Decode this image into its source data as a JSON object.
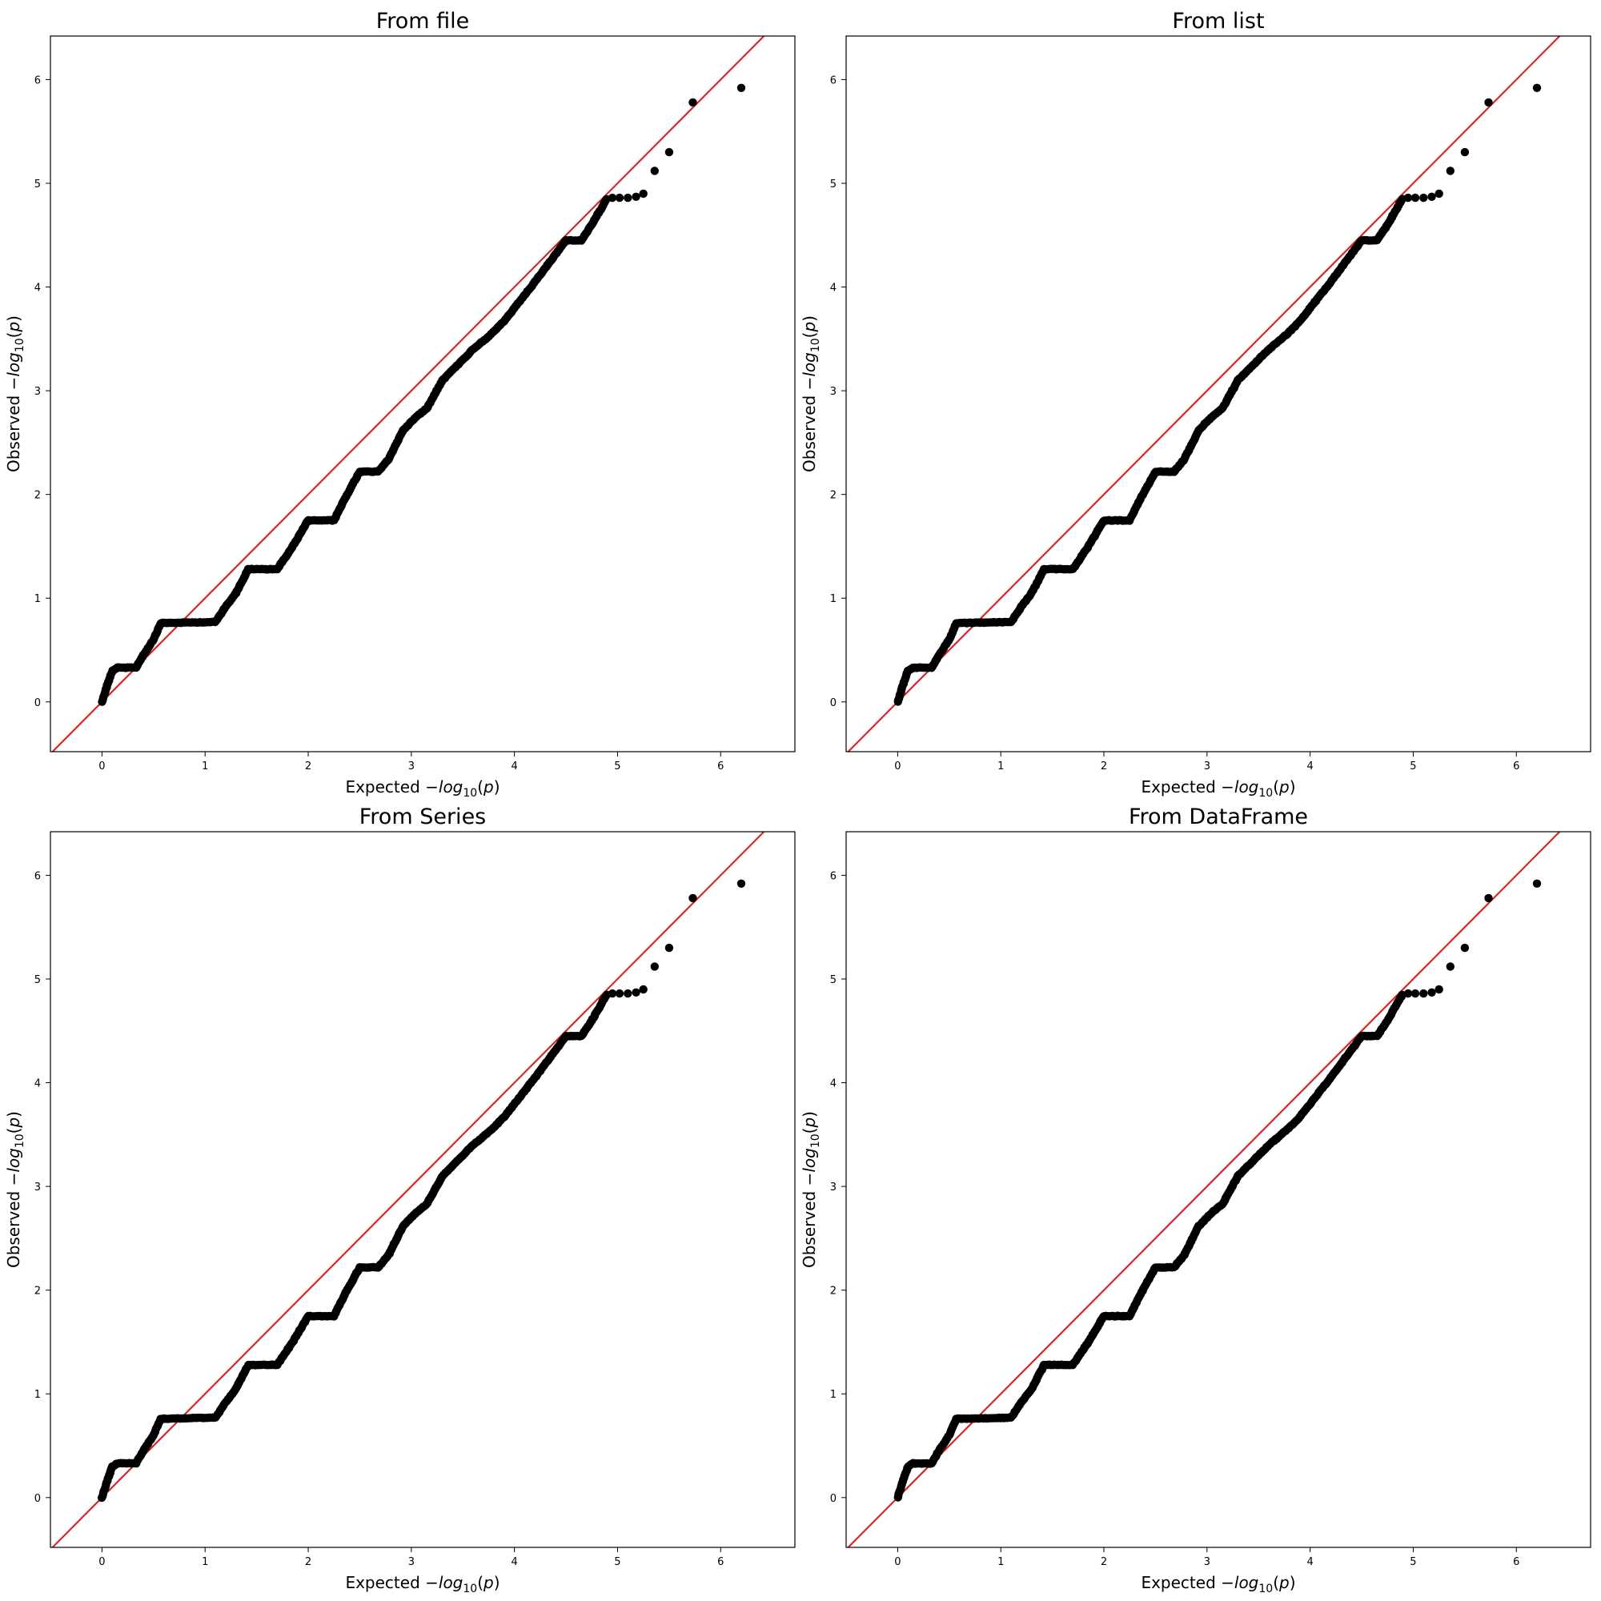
{
  "chart_data": [
    {
      "type": "scatter",
      "title": "From file",
      "xlabel": "Expected -log10(p)",
      "ylabel": "Observed -log10(p)",
      "xlim": [
        -0.5,
        6.72
      ],
      "ylim": [
        -0.48,
        6.42
      ],
      "xticks": [
        "0",
        "1",
        "2",
        "3",
        "4",
        "5",
        "6"
      ],
      "yticks": [
        "0",
        "1",
        "2",
        "3",
        "4",
        "5",
        "6"
      ],
      "reference_line": "y = x",
      "reference_color": "#ee1111",
      "point_color": "#000000",
      "curve": [
        [
          0,
          0
        ],
        [
          0.05,
          0.16
        ],
        [
          0.1,
          0.3
        ],
        [
          0.15,
          0.33
        ],
        [
          0.33,
          0.33
        ],
        [
          0.4,
          0.45
        ],
        [
          0.5,
          0.6
        ],
        [
          0.57,
          0.76
        ],
        [
          1.1,
          0.77
        ],
        [
          1.2,
          0.92
        ],
        [
          1.3,
          1.05
        ],
        [
          1.42,
          1.28
        ],
        [
          1.7,
          1.28
        ],
        [
          1.85,
          1.5
        ],
        [
          2.0,
          1.75
        ],
        [
          2.25,
          1.75
        ],
        [
          2.35,
          1.95
        ],
        [
          2.5,
          2.22
        ],
        [
          2.68,
          2.22
        ],
        [
          2.78,
          2.34
        ],
        [
          2.92,
          2.62
        ],
        [
          3.05,
          2.75
        ],
        [
          3.15,
          2.83
        ],
        [
          3.3,
          3.1
        ],
        [
          3.6,
          3.4
        ],
        [
          3.78,
          3.55
        ],
        [
          3.9,
          3.67
        ],
        [
          4.2,
          4.05
        ],
        [
          4.35,
          4.25
        ],
        [
          4.5,
          4.45
        ],
        [
          4.65,
          4.45
        ],
        [
          4.75,
          4.6
        ],
        [
          4.9,
          4.86
        ]
      ],
      "outliers": [
        [
          4.95,
          4.86
        ],
        [
          5.02,
          4.86
        ],
        [
          5.1,
          4.86
        ],
        [
          5.18,
          4.87
        ],
        [
          5.25,
          4.9
        ],
        [
          5.36,
          5.12
        ],
        [
          5.5,
          5.3
        ],
        [
          5.73,
          5.78
        ],
        [
          6.2,
          5.92
        ]
      ]
    },
    {
      "type": "scatter",
      "title": "From list",
      "xlabel": "Expected -log10(p)",
      "ylabel": "Observed -log10(p)",
      "xlim": [
        -0.5,
        6.72
      ],
      "ylim": [
        -0.48,
        6.42
      ],
      "xticks": [
        "0",
        "1",
        "2",
        "3",
        "4",
        "5",
        "6"
      ],
      "yticks": [
        "0",
        "1",
        "2",
        "3",
        "4",
        "5",
        "6"
      ],
      "reference_line": "y = x",
      "reference_color": "#ee1111",
      "point_color": "#000000",
      "curve": [
        [
          0,
          0
        ],
        [
          0.05,
          0.16
        ],
        [
          0.1,
          0.3
        ],
        [
          0.15,
          0.33
        ],
        [
          0.33,
          0.33
        ],
        [
          0.4,
          0.45
        ],
        [
          0.5,
          0.6
        ],
        [
          0.57,
          0.76
        ],
        [
          1.1,
          0.77
        ],
        [
          1.2,
          0.92
        ],
        [
          1.3,
          1.05
        ],
        [
          1.42,
          1.28
        ],
        [
          1.7,
          1.28
        ],
        [
          1.85,
          1.5
        ],
        [
          2.0,
          1.75
        ],
        [
          2.25,
          1.75
        ],
        [
          2.35,
          1.95
        ],
        [
          2.5,
          2.22
        ],
        [
          2.68,
          2.22
        ],
        [
          2.78,
          2.34
        ],
        [
          2.92,
          2.62
        ],
        [
          3.05,
          2.75
        ],
        [
          3.15,
          2.83
        ],
        [
          3.3,
          3.1
        ],
        [
          3.6,
          3.4
        ],
        [
          3.78,
          3.55
        ],
        [
          3.9,
          3.67
        ],
        [
          4.2,
          4.05
        ],
        [
          4.35,
          4.25
        ],
        [
          4.5,
          4.45
        ],
        [
          4.65,
          4.45
        ],
        [
          4.75,
          4.6
        ],
        [
          4.9,
          4.86
        ]
      ],
      "outliers": [
        [
          4.95,
          4.86
        ],
        [
          5.02,
          4.86
        ],
        [
          5.1,
          4.86
        ],
        [
          5.18,
          4.87
        ],
        [
          5.25,
          4.9
        ],
        [
          5.36,
          5.12
        ],
        [
          5.5,
          5.3
        ],
        [
          5.73,
          5.78
        ],
        [
          6.2,
          5.92
        ]
      ]
    },
    {
      "type": "scatter",
      "title": "From Series",
      "xlabel": "Expected -log10(p)",
      "ylabel": "Observed -log10(p)",
      "xlim": [
        -0.5,
        6.72
      ],
      "ylim": [
        -0.48,
        6.42
      ],
      "xticks": [
        "0",
        "1",
        "2",
        "3",
        "4",
        "5",
        "6"
      ],
      "yticks": [
        "0",
        "1",
        "2",
        "3",
        "4",
        "5",
        "6"
      ],
      "reference_line": "y = x",
      "reference_color": "#ee1111",
      "point_color": "#000000",
      "curve": [
        [
          0,
          0
        ],
        [
          0.05,
          0.16
        ],
        [
          0.1,
          0.3
        ],
        [
          0.15,
          0.33
        ],
        [
          0.33,
          0.33
        ],
        [
          0.4,
          0.45
        ],
        [
          0.5,
          0.6
        ],
        [
          0.57,
          0.76
        ],
        [
          1.1,
          0.77
        ],
        [
          1.2,
          0.92
        ],
        [
          1.3,
          1.05
        ],
        [
          1.42,
          1.28
        ],
        [
          1.7,
          1.28
        ],
        [
          1.85,
          1.5
        ],
        [
          2.0,
          1.75
        ],
        [
          2.25,
          1.75
        ],
        [
          2.35,
          1.95
        ],
        [
          2.5,
          2.22
        ],
        [
          2.68,
          2.22
        ],
        [
          2.78,
          2.34
        ],
        [
          2.92,
          2.62
        ],
        [
          3.05,
          2.75
        ],
        [
          3.15,
          2.83
        ],
        [
          3.3,
          3.1
        ],
        [
          3.6,
          3.4
        ],
        [
          3.78,
          3.55
        ],
        [
          3.9,
          3.67
        ],
        [
          4.2,
          4.05
        ],
        [
          4.35,
          4.25
        ],
        [
          4.5,
          4.45
        ],
        [
          4.65,
          4.45
        ],
        [
          4.75,
          4.6
        ],
        [
          4.9,
          4.86
        ]
      ],
      "outliers": [
        [
          4.95,
          4.86
        ],
        [
          5.02,
          4.86
        ],
        [
          5.1,
          4.86
        ],
        [
          5.18,
          4.87
        ],
        [
          5.25,
          4.9
        ],
        [
          5.36,
          5.12
        ],
        [
          5.5,
          5.3
        ],
        [
          5.73,
          5.78
        ],
        [
          6.2,
          5.92
        ]
      ]
    },
    {
      "type": "scatter",
      "title": "From DataFrame",
      "xlabel": "Expected -log10(p)",
      "ylabel": "Observed -log10(p)",
      "xlim": [
        -0.5,
        6.72
      ],
      "ylim": [
        -0.48,
        6.42
      ],
      "xticks": [
        "0",
        "1",
        "2",
        "3",
        "4",
        "5",
        "6"
      ],
      "yticks": [
        "0",
        "1",
        "2",
        "3",
        "4",
        "5",
        "6"
      ],
      "reference_line": "y = x",
      "reference_color": "#ee1111",
      "point_color": "#000000",
      "curve": [
        [
          0,
          0
        ],
        [
          0.05,
          0.16
        ],
        [
          0.1,
          0.3
        ],
        [
          0.15,
          0.33
        ],
        [
          0.33,
          0.33
        ],
        [
          0.4,
          0.45
        ],
        [
          0.5,
          0.6
        ],
        [
          0.57,
          0.76
        ],
        [
          1.1,
          0.77
        ],
        [
          1.2,
          0.92
        ],
        [
          1.3,
          1.05
        ],
        [
          1.42,
          1.28
        ],
        [
          1.7,
          1.28
        ],
        [
          1.85,
          1.5
        ],
        [
          2.0,
          1.75
        ],
        [
          2.25,
          1.75
        ],
        [
          2.35,
          1.95
        ],
        [
          2.5,
          2.22
        ],
        [
          2.68,
          2.22
        ],
        [
          2.78,
          2.34
        ],
        [
          2.92,
          2.62
        ],
        [
          3.05,
          2.75
        ],
        [
          3.15,
          2.83
        ],
        [
          3.3,
          3.1
        ],
        [
          3.6,
          3.4
        ],
        [
          3.78,
          3.55
        ],
        [
          3.9,
          3.67
        ],
        [
          4.2,
          4.05
        ],
        [
          4.35,
          4.25
        ],
        [
          4.5,
          4.45
        ],
        [
          4.65,
          4.45
        ],
        [
          4.75,
          4.6
        ],
        [
          4.9,
          4.86
        ]
      ],
      "outliers": [
        [
          4.95,
          4.86
        ],
        [
          5.02,
          4.86
        ],
        [
          5.1,
          4.86
        ],
        [
          5.18,
          4.87
        ],
        [
          5.25,
          4.9
        ],
        [
          5.36,
          5.12
        ],
        [
          5.5,
          5.3
        ],
        [
          5.73,
          5.78
        ],
        [
          6.2,
          5.92
        ]
      ]
    }
  ]
}
